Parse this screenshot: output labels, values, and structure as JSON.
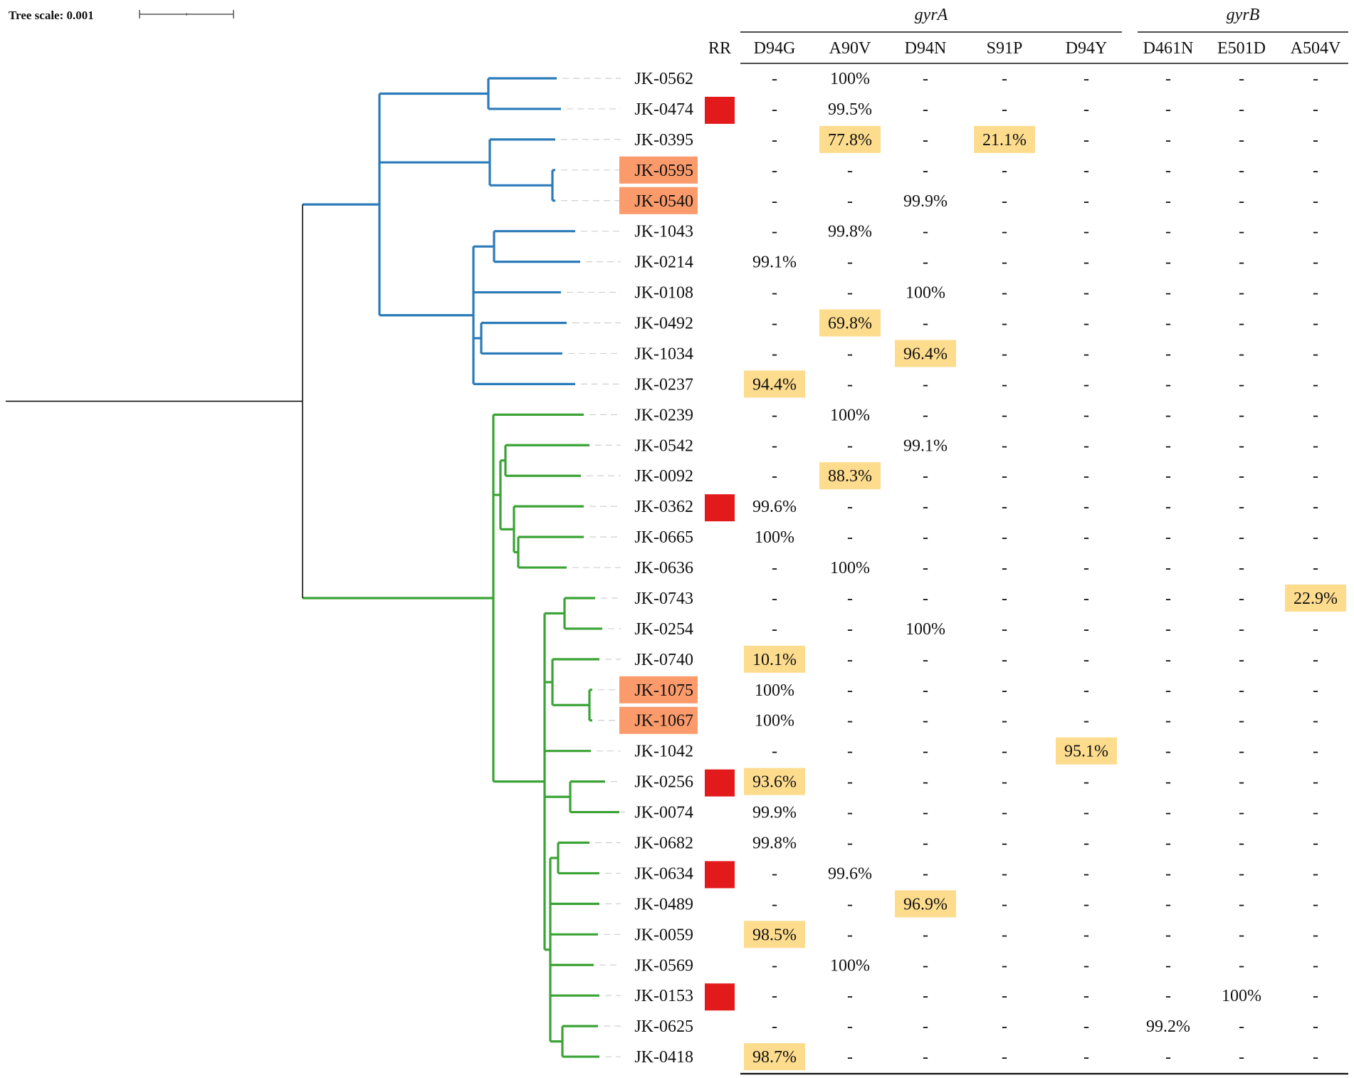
{
  "scale": {
    "label": "Tree scale: 0.001"
  },
  "genes": [
    {
      "name": "gyrA",
      "first_col": 0,
      "last_col": 4
    },
    {
      "name": "gyrB",
      "first_col": 5,
      "last_col": 7
    }
  ],
  "rr_header": "RR",
  "columns": [
    "D94G",
    "A90V",
    "D94N",
    "S91P",
    "D94Y",
    "D461N",
    "E501D",
    "A504V"
  ],
  "colors": {
    "clade_blue": "#2b7bb9",
    "clade_green": "#3aa335",
    "rr_marker": "#e31a1c",
    "label_highlight": "#fb9a6b",
    "cell_highlight": "#fddc8e",
    "root_line": "#000000"
  },
  "rows": [
    {
      "id": "JK-0562",
      "rr": false,
      "label_hl": false,
      "clade": "blue",
      "values": [
        "-",
        "100%",
        "-",
        "-",
        "-",
        "-",
        "-",
        "-"
      ],
      "hl": []
    },
    {
      "id": "JK-0474",
      "rr": true,
      "label_hl": false,
      "clade": "blue",
      "values": [
        "-",
        "99.5%",
        "-",
        "-",
        "-",
        "-",
        "-",
        "-"
      ],
      "hl": []
    },
    {
      "id": "JK-0395",
      "rr": false,
      "label_hl": false,
      "clade": "blue",
      "values": [
        "-",
        "77.8%",
        "-",
        "21.1%",
        "-",
        "-",
        "-",
        "-"
      ],
      "hl": [
        1,
        3
      ]
    },
    {
      "id": "JK-0595",
      "rr": false,
      "label_hl": true,
      "clade": "blue",
      "values": [
        "-",
        "-",
        "-",
        "-",
        "-",
        "-",
        "-",
        "-"
      ],
      "hl": []
    },
    {
      "id": "JK-0540",
      "rr": false,
      "label_hl": true,
      "clade": "blue",
      "values": [
        "-",
        "-",
        "99.9%",
        "-",
        "-",
        "-",
        "-",
        "-"
      ],
      "hl": []
    },
    {
      "id": "JK-1043",
      "rr": false,
      "label_hl": false,
      "clade": "blue",
      "values": [
        "-",
        "99.8%",
        "-",
        "-",
        "-",
        "-",
        "-",
        "-"
      ],
      "hl": []
    },
    {
      "id": "JK-0214",
      "rr": false,
      "label_hl": false,
      "clade": "blue",
      "values": [
        "99.1%",
        "-",
        "-",
        "-",
        "-",
        "-",
        "-",
        "-"
      ],
      "hl": []
    },
    {
      "id": "JK-0108",
      "rr": false,
      "label_hl": false,
      "clade": "blue",
      "values": [
        "-",
        "-",
        "100%",
        "-",
        "-",
        "-",
        "-",
        "-"
      ],
      "hl": []
    },
    {
      "id": "JK-0492",
      "rr": false,
      "label_hl": false,
      "clade": "blue",
      "values": [
        "-",
        "69.8%",
        "-",
        "-",
        "-",
        "-",
        "-",
        "-"
      ],
      "hl": [
        1
      ]
    },
    {
      "id": "JK-1034",
      "rr": false,
      "label_hl": false,
      "clade": "blue",
      "values": [
        "-",
        "-",
        "96.4%",
        "-",
        "-",
        "-",
        "-",
        "-"
      ],
      "hl": [
        2
      ]
    },
    {
      "id": "JK-0237",
      "rr": false,
      "label_hl": false,
      "clade": "blue",
      "values": [
        "94.4%",
        "-",
        "-",
        "-",
        "-",
        "-",
        "-",
        "-"
      ],
      "hl": [
        0
      ]
    },
    {
      "id": "JK-0239",
      "rr": false,
      "label_hl": false,
      "clade": "green",
      "values": [
        "-",
        "100%",
        "-",
        "-",
        "-",
        "-",
        "-",
        "-"
      ],
      "hl": []
    },
    {
      "id": "JK-0542",
      "rr": false,
      "label_hl": false,
      "clade": "green",
      "values": [
        "-",
        "-",
        "99.1%",
        "-",
        "-",
        "-",
        "-",
        "-"
      ],
      "hl": []
    },
    {
      "id": "JK-0092",
      "rr": false,
      "label_hl": false,
      "clade": "green",
      "values": [
        "-",
        "88.3%",
        "-",
        "-",
        "-",
        "-",
        "-",
        "-"
      ],
      "hl": [
        1
      ]
    },
    {
      "id": "JK-0362",
      "rr": true,
      "label_hl": false,
      "clade": "green",
      "values": [
        "99.6%",
        "-",
        "-",
        "-",
        "-",
        "-",
        "-",
        "-"
      ],
      "hl": []
    },
    {
      "id": "JK-0665",
      "rr": false,
      "label_hl": false,
      "clade": "green",
      "values": [
        "100%",
        "-",
        "-",
        "-",
        "-",
        "-",
        "-",
        "-"
      ],
      "hl": []
    },
    {
      "id": "JK-0636",
      "rr": false,
      "label_hl": false,
      "clade": "green",
      "values": [
        "-",
        "100%",
        "-",
        "-",
        "-",
        "-",
        "-",
        "-"
      ],
      "hl": []
    },
    {
      "id": "JK-0743",
      "rr": false,
      "label_hl": false,
      "clade": "green",
      "values": [
        "-",
        "-",
        "-",
        "-",
        "-",
        "-",
        "-",
        "22.9%"
      ],
      "hl": [
        7
      ]
    },
    {
      "id": "JK-0254",
      "rr": false,
      "label_hl": false,
      "clade": "green",
      "values": [
        "-",
        "-",
        "100%",
        "-",
        "-",
        "-",
        "-",
        "-"
      ],
      "hl": []
    },
    {
      "id": "JK-0740",
      "rr": false,
      "label_hl": false,
      "clade": "green",
      "values": [
        "10.1%",
        "-",
        "-",
        "-",
        "-",
        "-",
        "-",
        "-"
      ],
      "hl": [
        0
      ]
    },
    {
      "id": "JK-1075",
      "rr": false,
      "label_hl": true,
      "clade": "green",
      "values": [
        "100%",
        "-",
        "-",
        "-",
        "-",
        "-",
        "-",
        "-"
      ],
      "hl": []
    },
    {
      "id": "JK-1067",
      "rr": false,
      "label_hl": true,
      "clade": "green",
      "values": [
        "100%",
        "-",
        "-",
        "-",
        "-",
        "-",
        "-",
        "-"
      ],
      "hl": []
    },
    {
      "id": "JK-1042",
      "rr": false,
      "label_hl": false,
      "clade": "green",
      "values": [
        "-",
        "-",
        "-",
        "-",
        "95.1%",
        "-",
        "-",
        "-"
      ],
      "hl": [
        4
      ]
    },
    {
      "id": "JK-0256",
      "rr": true,
      "label_hl": false,
      "clade": "green",
      "values": [
        "93.6%",
        "-",
        "-",
        "-",
        "-",
        "-",
        "-",
        "-"
      ],
      "hl": [
        0
      ]
    },
    {
      "id": "JK-0074",
      "rr": false,
      "label_hl": false,
      "clade": "green",
      "values": [
        "99.9%",
        "-",
        "-",
        "-",
        "-",
        "-",
        "-",
        "-"
      ],
      "hl": []
    },
    {
      "id": "JK-0682",
      "rr": false,
      "label_hl": false,
      "clade": "green",
      "values": [
        "99.8%",
        "-",
        "-",
        "-",
        "-",
        "-",
        "-",
        "-"
      ],
      "hl": []
    },
    {
      "id": "JK-0634",
      "rr": true,
      "label_hl": false,
      "clade": "green",
      "values": [
        "-",
        "99.6%",
        "-",
        "-",
        "-",
        "-",
        "-",
        "-"
      ],
      "hl": []
    },
    {
      "id": "JK-0489",
      "rr": false,
      "label_hl": false,
      "clade": "green",
      "values": [
        "-",
        "-",
        "96.9%",
        "-",
        "-",
        "-",
        "-",
        "-"
      ],
      "hl": [
        2
      ]
    },
    {
      "id": "JK-0059",
      "rr": false,
      "label_hl": false,
      "clade": "green",
      "values": [
        "98.5%",
        "-",
        "-",
        "-",
        "-",
        "-",
        "-",
        "-"
      ],
      "hl": [
        0
      ]
    },
    {
      "id": "JK-0569",
      "rr": false,
      "label_hl": false,
      "clade": "green",
      "values": [
        "-",
        "100%",
        "-",
        "-",
        "-",
        "-",
        "-",
        "-"
      ],
      "hl": []
    },
    {
      "id": "JK-0153",
      "rr": true,
      "label_hl": false,
      "clade": "green",
      "values": [
        "-",
        "-",
        "-",
        "-",
        "-",
        "-",
        "100%",
        "-"
      ],
      "hl": []
    },
    {
      "id": "JK-0625",
      "rr": false,
      "label_hl": false,
      "clade": "green",
      "values": [
        "-",
        "-",
        "-",
        "-",
        "-",
        "99.2%",
        "-",
        "-"
      ],
      "hl": []
    },
    {
      "id": "JK-0418",
      "rr": false,
      "label_hl": false,
      "clade": "green",
      "values": [
        "98.7%",
        "-",
        "-",
        "-",
        "-",
        "-",
        "-",
        "-"
      ],
      "hl": [
        0
      ]
    }
  ]
}
